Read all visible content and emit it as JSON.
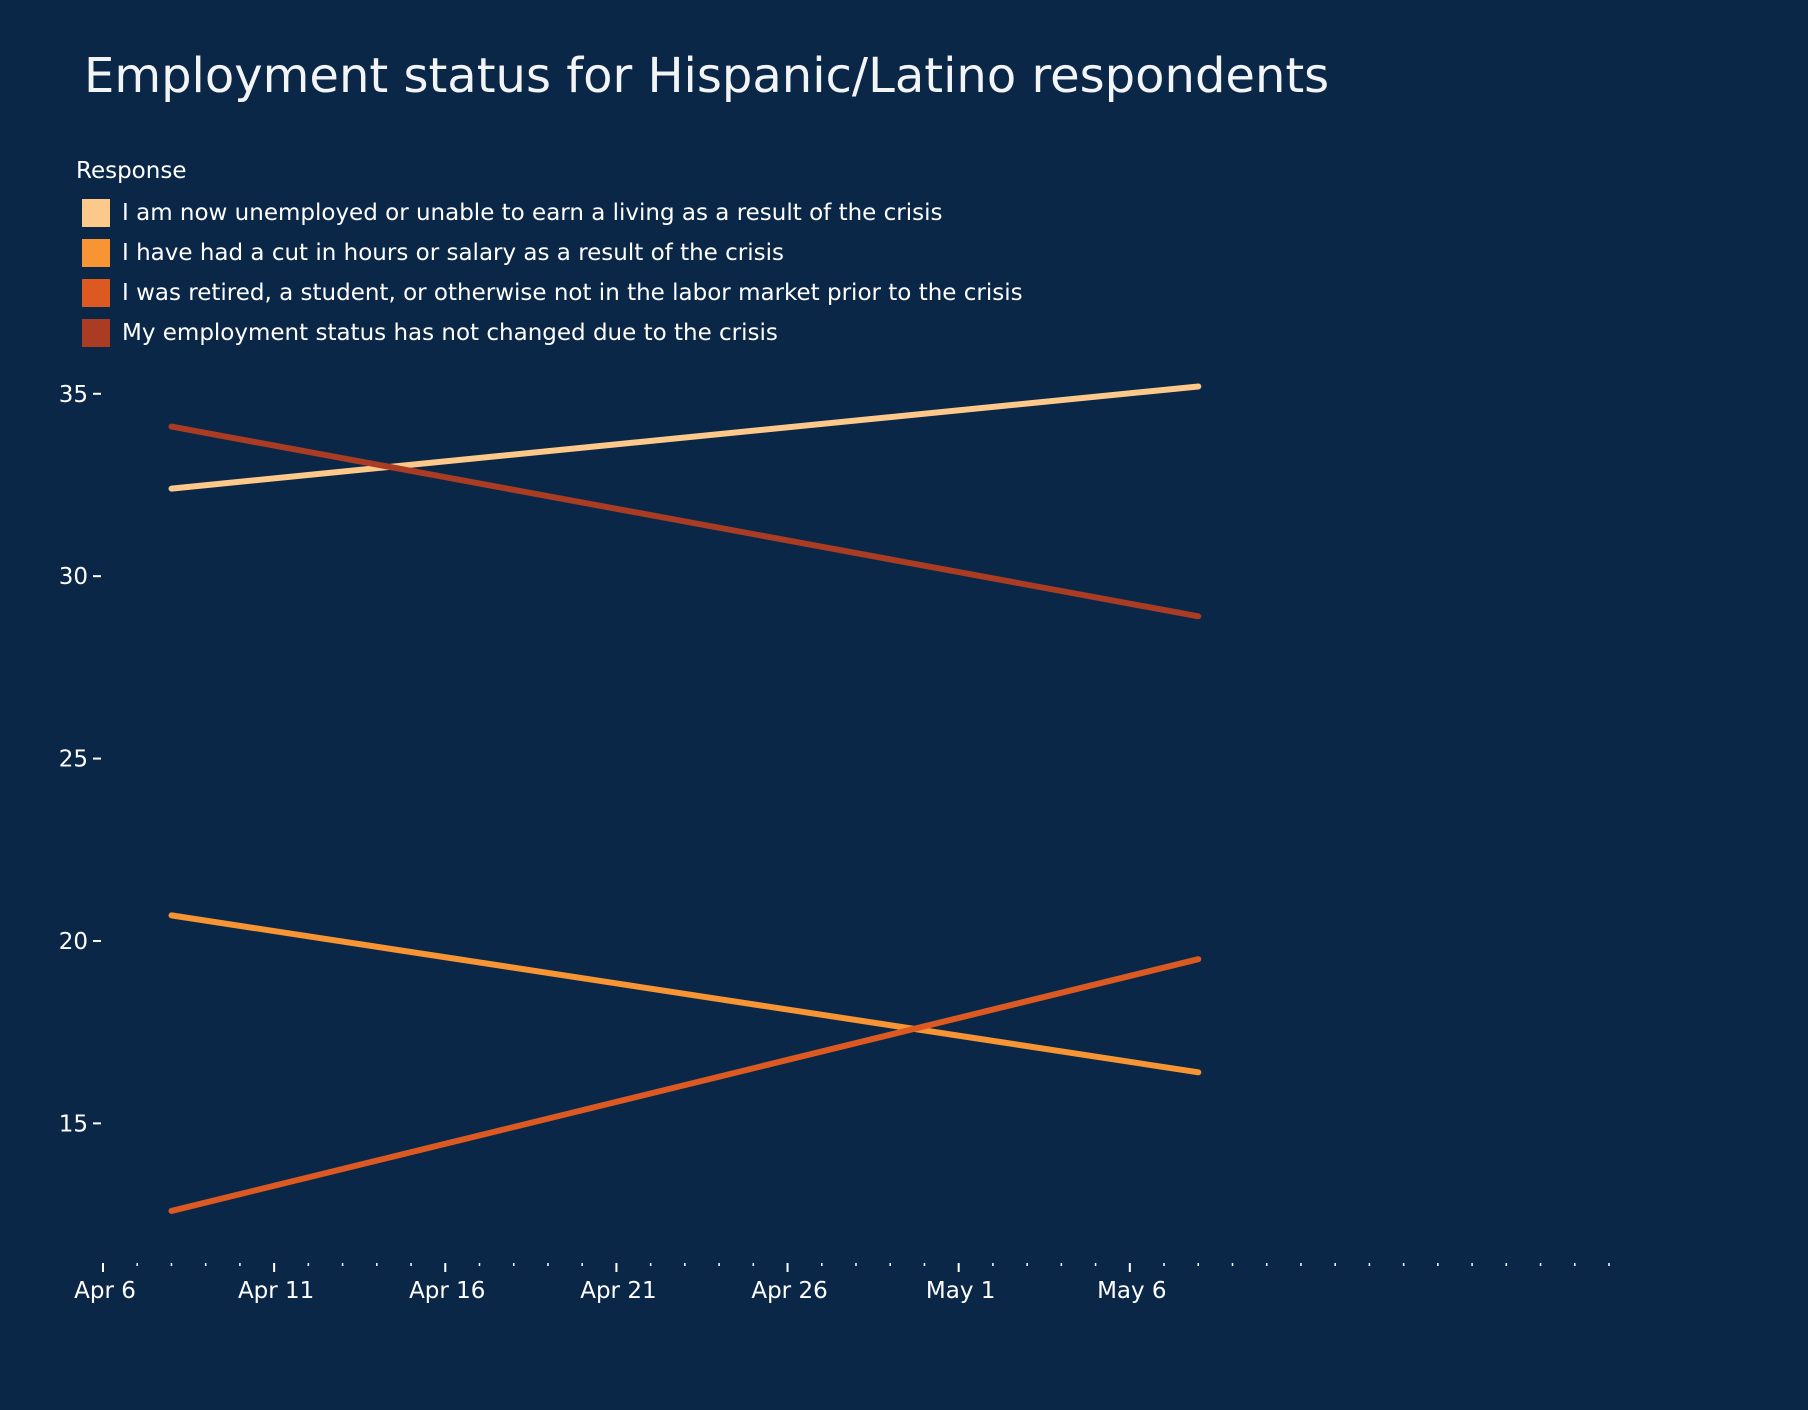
{
  "title": "Employment status for Hispanic/Latino respondents",
  "legend": {
    "title": "Response",
    "items": [
      {
        "label": "I am now unemployed or unable to earn a living as a result of the crisis",
        "color": "#fdc98a"
      },
      {
        "label": "I have had a cut in hours or salary as a result of the crisis",
        "color": "#f79433"
      },
      {
        "label": "I was retired, a student, or otherwise not in the labor market prior to the crisis",
        "color": "#dc5a22"
      },
      {
        "label": "My employment status has not changed due to the crisis",
        "color": "#a93c22"
      }
    ]
  },
  "chart_data": {
    "type": "line",
    "title": "Employment status for Hispanic/Latino respondents",
    "xlabel": "",
    "ylabel": "",
    "x": [
      "2020-04-08",
      "2020-05-08"
    ],
    "xlim": [
      "2020-04-06",
      "2020-05-20"
    ],
    "ylim": [
      11.2,
      36.2
    ],
    "x_ticks": [
      "Apr 6",
      "Apr 11",
      "Apr 16",
      "Apr 21",
      "Apr 26",
      "May 1",
      "May 6"
    ],
    "y_ticks": [
      15,
      20,
      25,
      30,
      35
    ],
    "grid": false,
    "legend_position": "top-left",
    "series": [
      {
        "name": "I am now unemployed or unable to earn a living as a result of the crisis",
        "color": "#fdc98a",
        "values": [
          32.4,
          35.2
        ]
      },
      {
        "name": "I have had a cut in hours or salary as a result of the crisis",
        "color": "#f79433",
        "values": [
          20.7,
          16.4
        ]
      },
      {
        "name": "I was retired, a student, or otherwise not in the labor market prior to the crisis",
        "color": "#dc5a22",
        "values": [
          12.6,
          19.5
        ]
      },
      {
        "name": "My employment status has not changed due to the crisis",
        "color": "#a93c22",
        "values": [
          34.1,
          28.9
        ]
      }
    ]
  }
}
